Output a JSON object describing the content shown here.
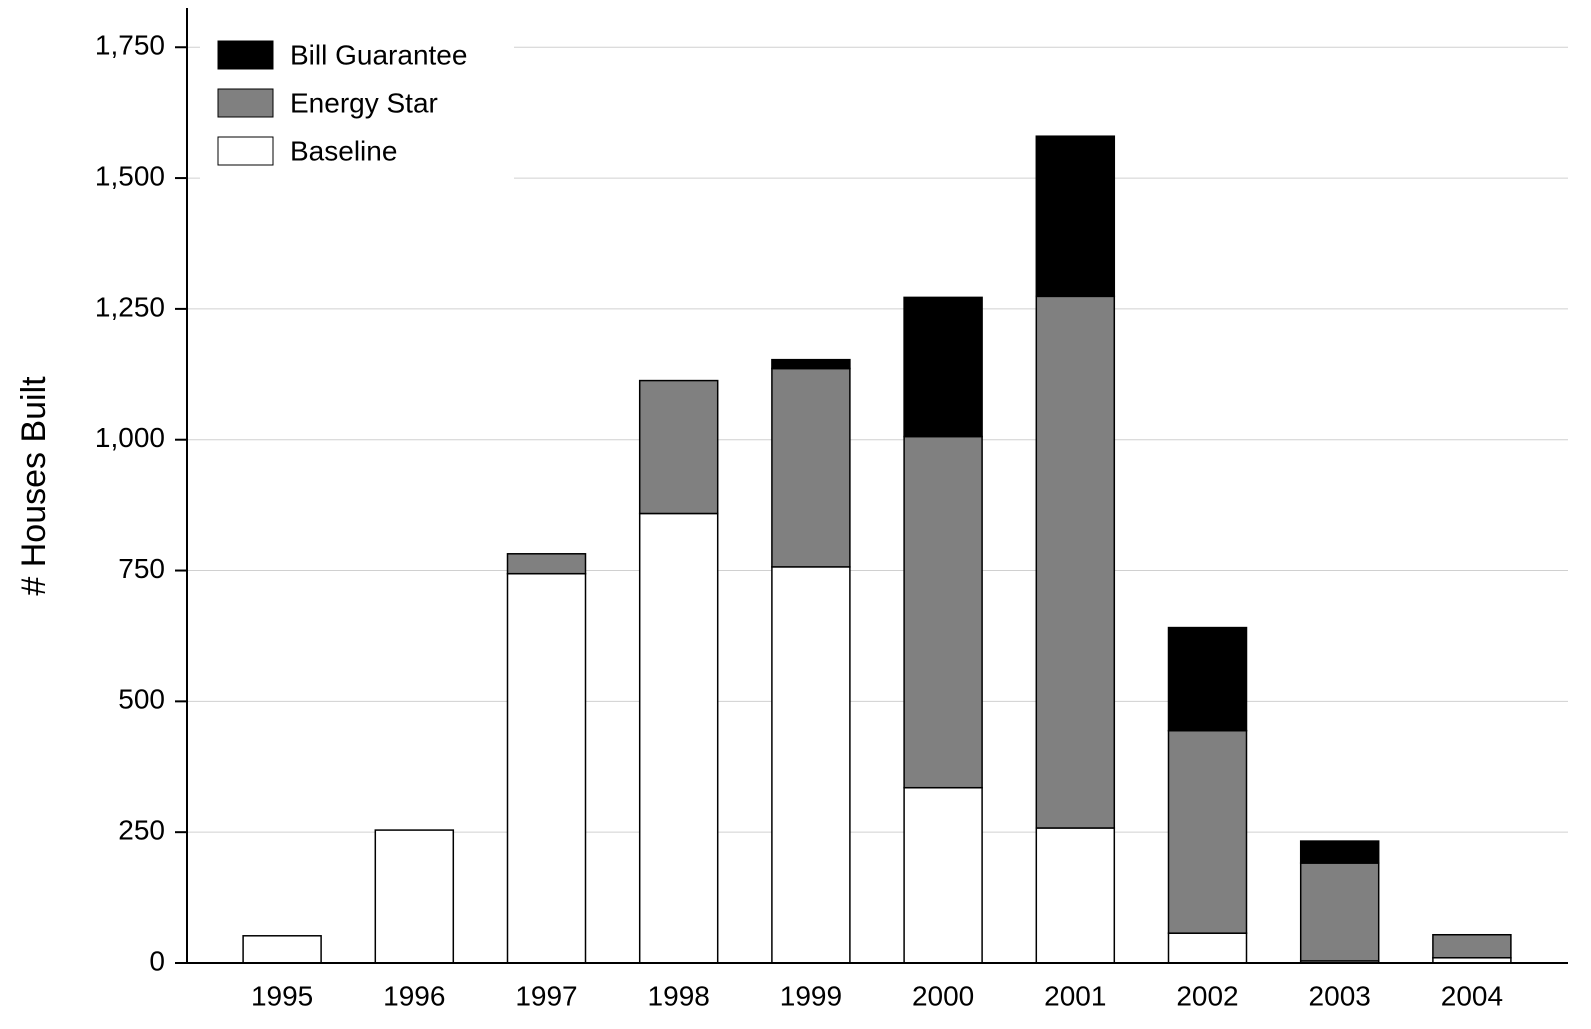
{
  "chart_data": {
    "type": "stacked-bar",
    "y_label": "# Houses Built",
    "categories": [
      "1995",
      "1996",
      "1997",
      "1998",
      "1999",
      "2000",
      "2001",
      "2002",
      "2003",
      "2004"
    ],
    "series": [
      {
        "name": "Baseline",
        "color": "#ffffff",
        "values": [
          52,
          254,
          744,
          859,
          757,
          335,
          258,
          57,
          4,
          10
        ]
      },
      {
        "name": "Energy Star",
        "color": "#808080",
        "values": [
          0,
          0,
          38,
          254,
          379,
          671,
          1016,
          387,
          187,
          44
        ]
      },
      {
        "name": "Bill Guarantee",
        "color": "#000000",
        "values": [
          0,
          0,
          0,
          0,
          17,
          266,
          306,
          197,
          42,
          0
        ]
      }
    ],
    "ylim": [
      0,
      1825
    ],
    "yticks": [
      0,
      250,
      500,
      750,
      {
        "value": 1000,
        "label": "1,000"
      },
      {
        "value": 1250,
        "label": "1,250"
      },
      {
        "value": 1500,
        "label": "1,500"
      },
      {
        "value": 1750,
        "label": "1,750"
      }
    ],
    "grid": true,
    "legend": "top-left"
  }
}
